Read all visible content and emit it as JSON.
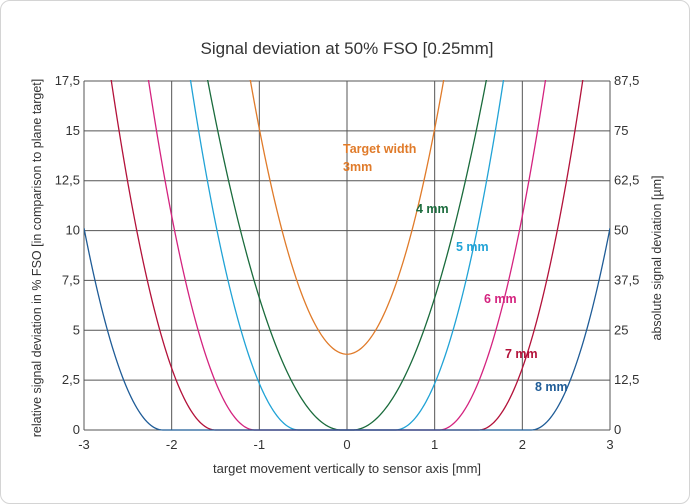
{
  "chart_data": {
    "type": "line",
    "title": "Signal deviation at 50% FSO [0.25mm]",
    "xlabel": "target movement vertically to sensor axis [mm]",
    "ylabel_left": "relative signal deviation in % FSO  [in comparison to plane target]",
    "ylabel_right": "absolute signal deviation [µm]",
    "xlim": [
      -3,
      3
    ],
    "ylim": [
      0,
      17.5
    ],
    "ylim_right": [
      0,
      87.5
    ],
    "x_ticks": [
      "-3",
      "-2",
      "-1",
      "0",
      "1",
      "2",
      "3"
    ],
    "y_ticks_left": [
      "0",
      "2,5",
      "5",
      "7,5",
      "10",
      "12,5",
      "15",
      "17,5"
    ],
    "y_ticks_right": [
      "0",
      "12,5",
      "25",
      "37,5",
      "50",
      "62,5",
      "75",
      "87,5"
    ],
    "grid": true,
    "series": [
      {
        "name": "Target width 3mm",
        "label_line1": "Target width",
        "label_line2": "3mm",
        "color": "#e07b2a",
        "a": 11.3,
        "w": 0,
        "offset": 3.8
      },
      {
        "name": "4 mm",
        "color": "#1a6b3c",
        "a": 7.5,
        "w": 0.06,
        "offset": 0
      },
      {
        "name": "5 mm",
        "color": "#21a3d6",
        "a": 11.5,
        "w": 0.55,
        "offset": 0
      },
      {
        "name": "6 mm",
        "color": "#d4237f",
        "a": 11.9,
        "w": 1.05,
        "offset": 0
      },
      {
        "name": "7 mm",
        "color": "#b3123a",
        "a": 12.4,
        "w": 1.5,
        "offset": 0
      },
      {
        "name": "8 mm",
        "color": "#1f5c97",
        "a": 12.5,
        "w": 2.1,
        "offset": 0
      }
    ]
  }
}
